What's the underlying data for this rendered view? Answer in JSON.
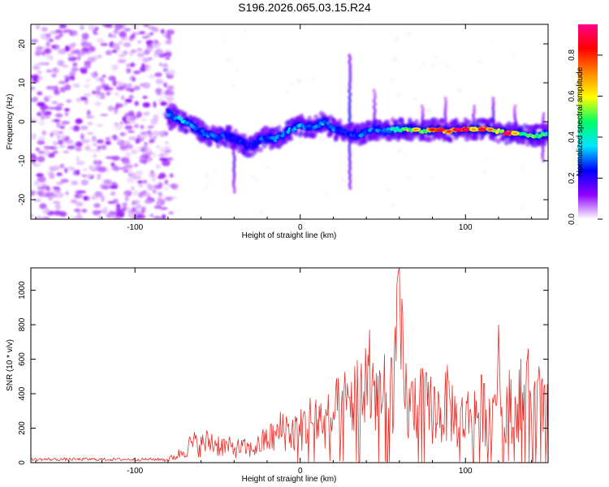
{
  "title": "S196.2026.065.03.15.R24",
  "chart_data": [
    {
      "type": "heatmap",
      "xlabel": "Height of straight line (km)",
      "ylabel": "Frequency (Hz)",
      "xlim": [
        -163,
        150
      ],
      "ylim": [
        -25,
        25
      ],
      "xticks": [
        -100,
        0,
        100
      ],
      "yticks": [
        -20,
        -10,
        0,
        10,
        20
      ],
      "grid": false,
      "colorbar": {
        "label": "Normalized spectral amplitude",
        "range": [
          0,
          0.95
        ],
        "ticks": [
          0,
          0.2,
          0.4,
          0.6,
          0.8
        ],
        "colors": [
          "#ffffff",
          "#8f00ff",
          "#0000ff",
          "#00e5ff",
          "#00ff66",
          "#ffff00",
          "#ff8800",
          "#ff0000",
          "#ff0088"
        ]
      },
      "noise_region": {
        "x_range": [
          -163,
          -80
        ],
        "amplitude_range": [
          0.02,
          0.12
        ]
      },
      "ridge": [
        {
          "x": -80,
          "f": 2,
          "amp": 0.3
        },
        {
          "x": -75,
          "f": 1,
          "amp": 0.35
        },
        {
          "x": -70,
          "f": 0,
          "amp": 0.38
        },
        {
          "x": -65,
          "f": -1,
          "amp": 0.35
        },
        {
          "x": -60,
          "f": -2.5,
          "amp": 0.3
        },
        {
          "x": -55,
          "f": -3.5,
          "amp": 0.3
        },
        {
          "x": -50,
          "f": -4,
          "amp": 0.32
        },
        {
          "x": -45,
          "f": -3.5,
          "amp": 0.28
        },
        {
          "x": -40,
          "f": -4.5,
          "amp": 0.25
        },
        {
          "x": -35,
          "f": -5.5,
          "amp": 0.25
        },
        {
          "x": -30,
          "f": -6.5,
          "amp": 0.22
        },
        {
          "x": -25,
          "f": -5,
          "amp": 0.26
        },
        {
          "x": -20,
          "f": -4,
          "amp": 0.3
        },
        {
          "x": -15,
          "f": -4.5,
          "amp": 0.3
        },
        {
          "x": -10,
          "f": -3,
          "amp": 0.32
        },
        {
          "x": -5,
          "f": -2,
          "amp": 0.34
        },
        {
          "x": 0,
          "f": -1,
          "amp": 0.33
        },
        {
          "x": 5,
          "f": -1.5,
          "amp": 0.3
        },
        {
          "x": 10,
          "f": -1,
          "amp": 0.35
        },
        {
          "x": 15,
          "f": 0,
          "amp": 0.33
        },
        {
          "x": 20,
          "f": -2,
          "amp": 0.3
        },
        {
          "x": 25,
          "f": -2,
          "amp": 0.3
        },
        {
          "x": 30,
          "f": -3,
          "amp": 0.28
        },
        {
          "x": 35,
          "f": -3.5,
          "amp": 0.3
        },
        {
          "x": 40,
          "f": -2.5,
          "amp": 0.32
        },
        {
          "x": 45,
          "f": -2,
          "amp": 0.3
        },
        {
          "x": 50,
          "f": -2.5,
          "amp": 0.33
        },
        {
          "x": 55,
          "f": -2,
          "amp": 0.4
        },
        {
          "x": 60,
          "f": -2,
          "amp": 0.45
        },
        {
          "x": 65,
          "f": -2,
          "amp": 0.55
        },
        {
          "x": 70,
          "f": -2,
          "amp": 0.6
        },
        {
          "x": 75,
          "f": -2.5,
          "amp": 0.55
        },
        {
          "x": 80,
          "f": -2,
          "amp": 0.75
        },
        {
          "x": 85,
          "f": -2,
          "amp": 0.8
        },
        {
          "x": 90,
          "f": -2.5,
          "amp": 0.7
        },
        {
          "x": 95,
          "f": -2,
          "amp": 0.9
        },
        {
          "x": 100,
          "f": -2,
          "amp": 0.85
        },
        {
          "x": 105,
          "f": -2,
          "amp": 0.6
        },
        {
          "x": 110,
          "f": -2,
          "amp": 0.8
        },
        {
          "x": 115,
          "f": -2,
          "amp": 0.65
        },
        {
          "x": 120,
          "f": -2.5,
          "amp": 0.55
        },
        {
          "x": 125,
          "f": -3,
          "amp": 0.9
        },
        {
          "x": 130,
          "f": -3,
          "amp": 0.6
        },
        {
          "x": 135,
          "f": -3,
          "amp": 0.5
        },
        {
          "x": 140,
          "f": -3.5,
          "amp": 0.55
        },
        {
          "x": 145,
          "f": -3.5,
          "amp": 0.5
        },
        {
          "x": 150,
          "f": -3,
          "amp": 0.45
        }
      ],
      "spikes": [
        {
          "x": -40,
          "f_range": [
            -18,
            -4
          ],
          "amp": 0.15
        },
        {
          "x": 30,
          "f_range": [
            -17,
            17
          ],
          "amp": 0.2
        },
        {
          "x": 45,
          "f_range": [
            -4,
            8
          ],
          "amp": 0.12
        },
        {
          "x": 74,
          "f_range": [
            -4,
            4
          ],
          "amp": 0.12
        },
        {
          "x": 88,
          "f_range": [
            -4,
            6
          ],
          "amp": 0.12
        },
        {
          "x": 105,
          "f_range": [
            -4,
            4
          ],
          "amp": 0.12
        },
        {
          "x": 117,
          "f_range": [
            -4,
            6
          ],
          "amp": 0.15
        },
        {
          "x": 130,
          "f_range": [
            -4,
            4
          ],
          "amp": 0.12
        },
        {
          "x": 147,
          "f_range": [
            -10,
            2
          ],
          "amp": 0.15
        }
      ]
    },
    {
      "type": "line",
      "xlabel": "Height of straight line (km)",
      "ylabel": "SNR (10 * v/v)",
      "xlim": [
        -163,
        150
      ],
      "ylim": [
        0,
        1130
      ],
      "xticks": [
        -100,
        0,
        100
      ],
      "yticks": [
        0,
        200,
        400,
        600,
        800,
        1000
      ],
      "grid": false,
      "color": "#e8302a",
      "series": [
        {
          "name": "SNR",
          "x": [
            -163,
            -150,
            -140,
            -130,
            -120,
            -110,
            -100,
            -90,
            -82,
            -75,
            -70,
            -65,
            -60,
            -55,
            -50,
            -45,
            -40,
            -35,
            -30,
            -25,
            -20,
            -15,
            -10,
            -5,
            0,
            5,
            10,
            15,
            20,
            25,
            30,
            35,
            40,
            45,
            50,
            55,
            60,
            65,
            70,
            75,
            80,
            85,
            90,
            95,
            100,
            105,
            110,
            115,
            120,
            125,
            130,
            135,
            140,
            145,
            150
          ],
          "y": [
            20,
            25,
            20,
            25,
            20,
            25,
            20,
            25,
            20,
            60,
            120,
            180,
            160,
            200,
            170,
            150,
            130,
            140,
            120,
            160,
            220,
            240,
            330,
            280,
            300,
            380,
            420,
            350,
            450,
            500,
            560,
            650,
            740,
            680,
            580,
            700,
            1130,
            480,
            560,
            520,
            500,
            460,
            560,
            380,
            420,
            460,
            500,
            420,
            800,
            520,
            560,
            600,
            660,
            550,
            420
          ]
        }
      ],
      "peaks": [
        {
          "x": 60,
          "y": 1130
        },
        {
          "x": 120,
          "y": 800
        },
        {
          "x": 42,
          "y": 770
        },
        {
          "x": 138,
          "y": 660
        }
      ]
    }
  ]
}
